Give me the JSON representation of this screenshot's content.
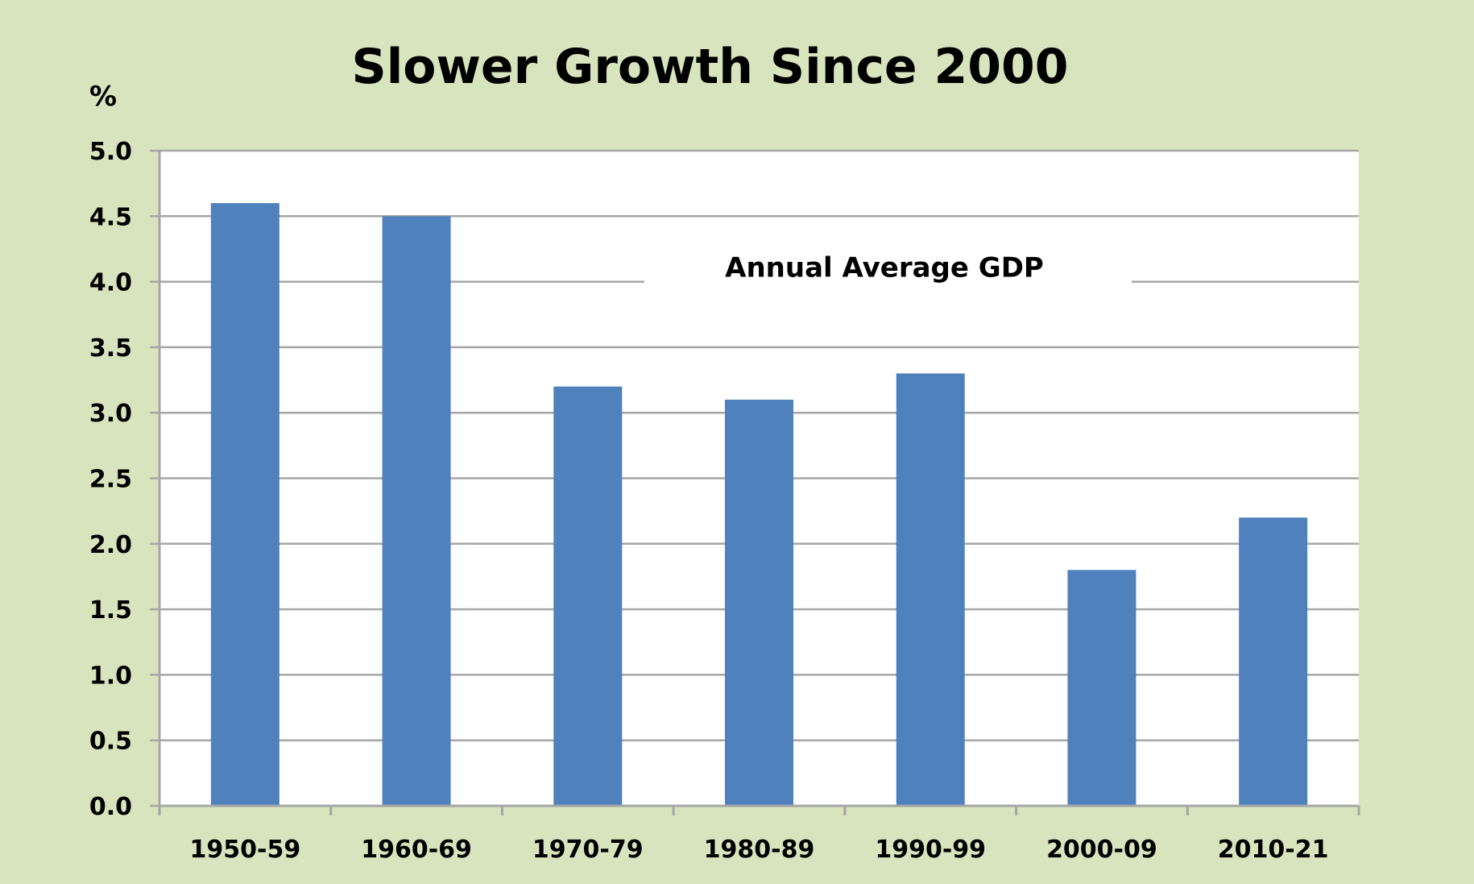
{
  "chart_data": {
    "type": "bar",
    "title": "Slower Growth Since 2000",
    "annotation": "Annual Average GDP",
    "y_unit": "%",
    "xlabel": "",
    "ylabel": "",
    "categories": [
      "1950-59",
      "1960-69",
      "1970-79",
      "1980-89",
      "1990-99",
      "2000-09",
      "2010-21"
    ],
    "values": [
      4.6,
      4.5,
      3.2,
      3.1,
      3.3,
      1.8,
      2.2
    ],
    "ylim": [
      0,
      5.0
    ],
    "y_ticks": [
      "0.0",
      "0.5",
      "1.0",
      "1.5",
      "2.0",
      "2.5",
      "3.0",
      "3.5",
      "4.0",
      "4.5",
      "5.0"
    ],
    "grid": true,
    "legend": "none",
    "colors": {
      "bar": "#4f81bd",
      "plot_background": "#ffffff",
      "page_background": "#d7e4bd",
      "gridline": "#a6a6a6"
    }
  }
}
